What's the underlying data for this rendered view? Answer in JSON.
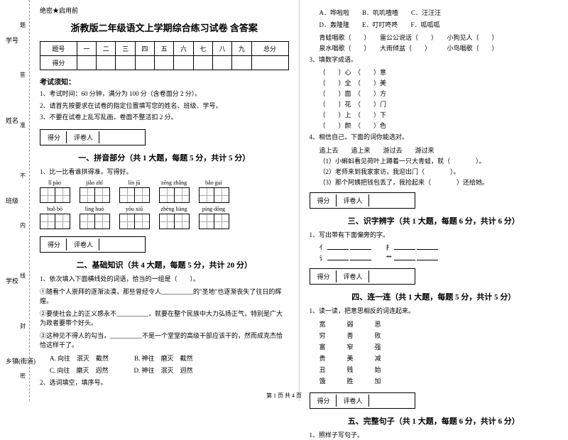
{
  "spine": {
    "labels": [
      "学号\n答",
      "姓名\n准",
      "班级\n不",
      "内",
      "学校",
      "线",
      "封",
      "乡镇(街道)\n密"
    ]
  },
  "header": {
    "secret": "绝密★启用前",
    "title": "浙教版二年级语文上学期综合练习试卷 含答案"
  },
  "scoreTable": {
    "cols": [
      "题号",
      "一",
      "二",
      "三",
      "四",
      "五",
      "六",
      "七",
      "八",
      "九",
      "总分"
    ],
    "row2": "得分"
  },
  "notice": {
    "heading": "考试须知：",
    "items": [
      "1、考试时间：60 分钟，满分为 100 分（含卷面分 2 分）。",
      "2、请首先按要求在试卷的指定位置填写您的姓名、班级、学号。",
      "3、不要在试卷上乱写乱画，卷面不整洁扣 2 分。"
    ]
  },
  "markbox": {
    "c1": "得分",
    "c2": "评卷人"
  },
  "sections": {
    "s1": {
      "title": "一、拼音部分（共 1 大题，每题 5 分，共计 5 分）",
      "q": "1、比一比看谁拼得准，写得好。"
    },
    "s2": {
      "title": "二、基础知识（共 4 大题，每题 5 分，共计 20 分）"
    },
    "s3": {
      "title": "三、识字辨字（共 1 大题，每题 6 分，共计 6 分）",
      "q": "1、写出带有下面偏旁的字。"
    },
    "s4": {
      "title": "四、连一连（共 1 大题，每题 5 分，共计 5 分）",
      "q": "1、读一读，把意思相反的词连起来。"
    },
    "s5": {
      "title": "五、完整句子（共 1 大题，每题 6 分，共计 6 分）",
      "q": "1、照样子写句子。"
    }
  },
  "pinyin": {
    "row1": [
      "lǐ  pào",
      "jiǎo  zhǐ",
      "lín  jū",
      "zēng  zhǎng",
      "bǎo  guì"
    ],
    "row2": [
      "huǒ  bō",
      "líng  huó",
      "yōu  xiū",
      "zhèng  liàng",
      "píng  dōng"
    ]
  },
  "q2_1": {
    "stem": "1、依次填入下面横线处的词语，恰当的一组是（　　）。",
    "lines": [
      "①随看个人崇拜的逐渐淡漠，那些曾经令人__________的\"圣地\"也逐渐丧失了往日的辉煌。",
      "②要使社会上的正义感永不__________，就要在整个民族中大力弘扬正气，特别是广大为政者要带个好头。",
      "③这种见不得人的勾当，__________不是一个堂堂的高级干部应该干的，然而成克杰恰恰这样干了。"
    ],
    "opts": [
      "A. 向往　泯灭　截然　　　　B. 神往　磨灭　截然",
      "C. 向往　磨灭　迥然　　　　D. 神往　泯灭　迥然"
    ]
  },
  "q2_2": "2、选词填空，填序号。",
  "rightTop": {
    "optsA": "A．哗啦啦　　B．叽叽喳喳　　C．汪汪汪",
    "optsB": "D．轰隆隆　　E．叮叮咚咚　　F．呱呱呱",
    "lines": [
      "青蛙唱歌（　　）　　雷公公说话（　　）　　小狗见人（　　）",
      "泉水唱歌（　　）　　大雨倾盆（　　）　　　小鸟唱歌（　　）"
    ]
  },
  "q3": {
    "stem": "3、填数字成语。",
    "rows": [
      [
        "（　　）心",
        "（　　）意"
      ],
      [
        "（　　）全",
        "（　　）美"
      ],
      [
        "（　　）面",
        "（　　）方"
      ],
      [
        "（　　）花",
        "（　　）门"
      ],
      [
        "（　　）上",
        "（　　）下"
      ],
      [
        "（　　）颜",
        "（　　）色"
      ]
    ]
  },
  "q4": {
    "stem": "4、相信自己，下面的词你能选对。",
    "opts": "追上去　　追上来　　游过去　　游过来",
    "lines": [
      "（1）小蝌蚪看见荷叶上蹲着一只大青蛙，就（　　　　）。",
      "（2）老师来到我家家访，我迎出门（　　　　）。",
      "（3）那个阿姨把钱包丢了，我捡起来（　　　　）还给她。"
    ]
  },
  "s3fill": {
    "r1": [
      "亻",
      "扌"
    ],
    "r2": [
      "讠",
      "艹"
    ]
  },
  "s4words": {
    "c1": [
      "宽",
      "穷",
      "富",
      "贵",
      "丑",
      "饿"
    ],
    "c2": [
      "恶",
      "败",
      "强",
      "减",
      "始",
      "加"
    ],
    "c3": [
      "弱",
      "善",
      "窄",
      "美",
      "贱",
      "胜"
    ]
  },
  "footer": "第 1 页 共 4 页"
}
